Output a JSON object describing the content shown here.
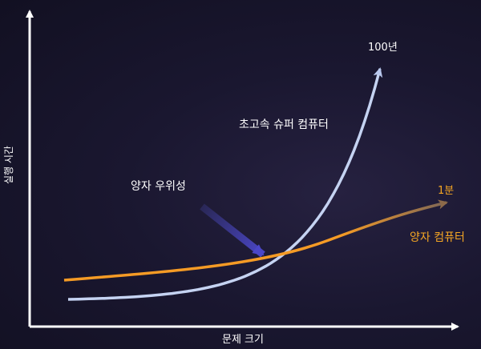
{
  "chart_data": {
    "type": "line",
    "title": "",
    "xlabel": "문제 크기",
    "ylabel": "실행 시간",
    "grid": false,
    "legend": "none",
    "series": [
      {
        "name": "초고속 슈퍼 컴퓨터",
        "color": "#c5d3f2",
        "shape": "exponential",
        "end_label": "100년"
      },
      {
        "name": "양자 컴퓨터",
        "color": "#f59b25",
        "shape": "slow-growth",
        "end_label": "1분"
      }
    ],
    "annotations": [
      {
        "text": "양자 우위성",
        "points_to": "crossover"
      }
    ]
  },
  "colors": {
    "axis": "#ffffff",
    "label_light": "#ffffff",
    "label_orange": "#f5a623",
    "arrow": "#4b47c8"
  }
}
